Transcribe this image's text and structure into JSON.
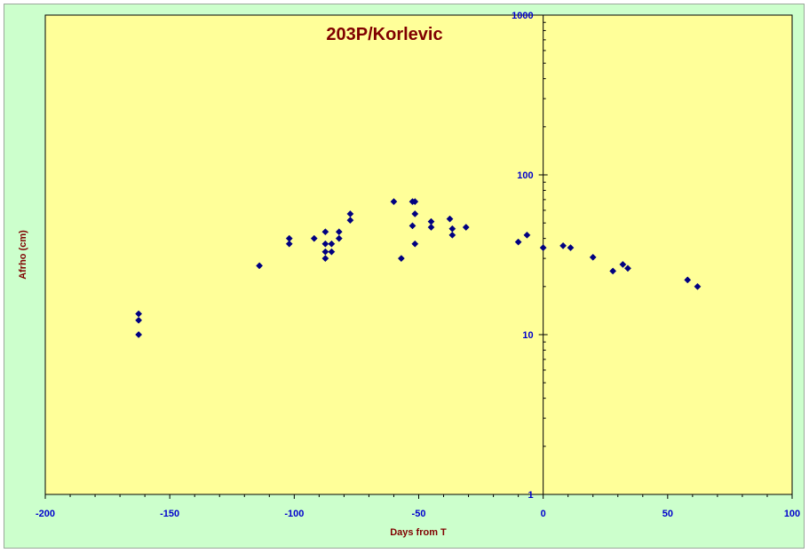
{
  "chart_data": {
    "type": "scatter",
    "title": "203P/Korlevic",
    "xlabel": "Days from T",
    "ylabel": "Afrho (cm)",
    "xlim": [
      -200,
      100
    ],
    "ylim": [
      1,
      1000
    ],
    "yscale": "log",
    "x_ticks": [
      -200,
      -150,
      -100,
      -50,
      0,
      50,
      100
    ],
    "y_ticks": [
      1,
      10,
      100,
      1000
    ],
    "x_tick_labels": [
      "-200",
      "-150",
      "-100",
      "-50",
      "0",
      "50",
      "100"
    ],
    "y_tick_labels": [
      "1",
      "10",
      "100",
      "1000"
    ],
    "grid": false,
    "legend": "none",
    "colors": {
      "plot_background": "#ffff99",
      "chart_background": "#ccffcc",
      "marker": "#000080",
      "tick_labels": "#0000cc",
      "titles": "#800000"
    },
    "series": [
      {
        "marker": "diamond",
        "points": [
          [
            -162.5,
            13.5
          ],
          [
            -162.5,
            12.3
          ],
          [
            -162.5,
            10.0
          ],
          [
            -114,
            27
          ],
          [
            -102,
            40
          ],
          [
            -102,
            37
          ],
          [
            -92,
            40
          ],
          [
            -87.5,
            44
          ],
          [
            -87.5,
            37
          ],
          [
            -87.5,
            33
          ],
          [
            -87.5,
            30
          ],
          [
            -85,
            37
          ],
          [
            -85,
            33
          ],
          [
            -82,
            44
          ],
          [
            -82,
            40
          ],
          [
            -77.5,
            57
          ],
          [
            -77.5,
            52
          ],
          [
            -60,
            68
          ],
          [
            -57,
            30
          ],
          [
            -52.5,
            68
          ],
          [
            -52.5,
            48
          ],
          [
            -51.5,
            68
          ],
          [
            -51.5,
            57
          ],
          [
            -51.5,
            37
          ],
          [
            -45,
            51
          ],
          [
            -45,
            47
          ],
          [
            -37.5,
            53
          ],
          [
            -36.5,
            46
          ],
          [
            -36.5,
            42
          ],
          [
            -31,
            47
          ],
          [
            -10,
            38
          ],
          [
            -6.5,
            42
          ],
          [
            0,
            35
          ],
          [
            8,
            36
          ],
          [
            11,
            35
          ],
          [
            20,
            30.5
          ],
          [
            28,
            25
          ],
          [
            32,
            27.5
          ],
          [
            34,
            26
          ],
          [
            58,
            22
          ],
          [
            62,
            20
          ]
        ]
      }
    ]
  }
}
